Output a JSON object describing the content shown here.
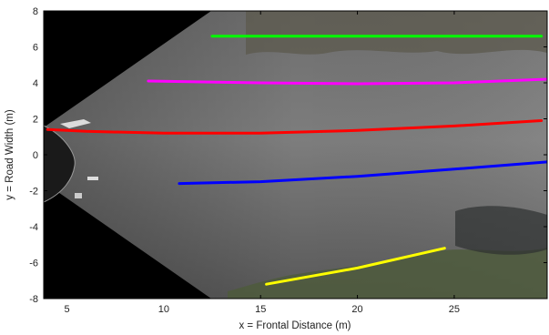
{
  "chart_data": {
    "type": "line",
    "title": "",
    "xlabel": "x = Frontal Distance (m)",
    "ylabel": "y = Road Width (m)",
    "xlim": [
      3.8,
      29.8
    ],
    "ylim": [
      -8,
      8
    ],
    "xticks": [
      5,
      10,
      15,
      20,
      25
    ],
    "yticks": [
      8,
      6,
      4,
      2,
      0,
      -2,
      -4,
      -6,
      -8
    ],
    "grid": false,
    "background": "bird's-eye road image (inverse perspective mapping)",
    "series": [
      {
        "color": "#00ff00",
        "x": [
          12.5,
          15,
          20,
          25,
          29.5
        ],
        "y": [
          6.6,
          6.6,
          6.6,
          6.6,
          6.6
        ]
      },
      {
        "color": "#ff00ff",
        "x": [
          9.2,
          12,
          15,
          20,
          25,
          29.8
        ],
        "y": [
          4.1,
          4.05,
          4.0,
          3.95,
          4.0,
          4.2
        ]
      },
      {
        "color": "#ff0000",
        "x": [
          4.0,
          6,
          10,
          15,
          20,
          25,
          29.5
        ],
        "y": [
          1.4,
          1.3,
          1.2,
          1.2,
          1.35,
          1.6,
          1.9
        ]
      },
      {
        "color": "#0000ff",
        "x": [
          10.8,
          15,
          20,
          25,
          29.8
        ],
        "y": [
          -1.6,
          -1.5,
          -1.2,
          -0.8,
          -0.4
        ]
      },
      {
        "color": "#ffff00",
        "x": [
          15.3,
          20,
          24.5
        ],
        "y": [
          -7.2,
          -6.3,
          -5.2
        ]
      }
    ]
  }
}
